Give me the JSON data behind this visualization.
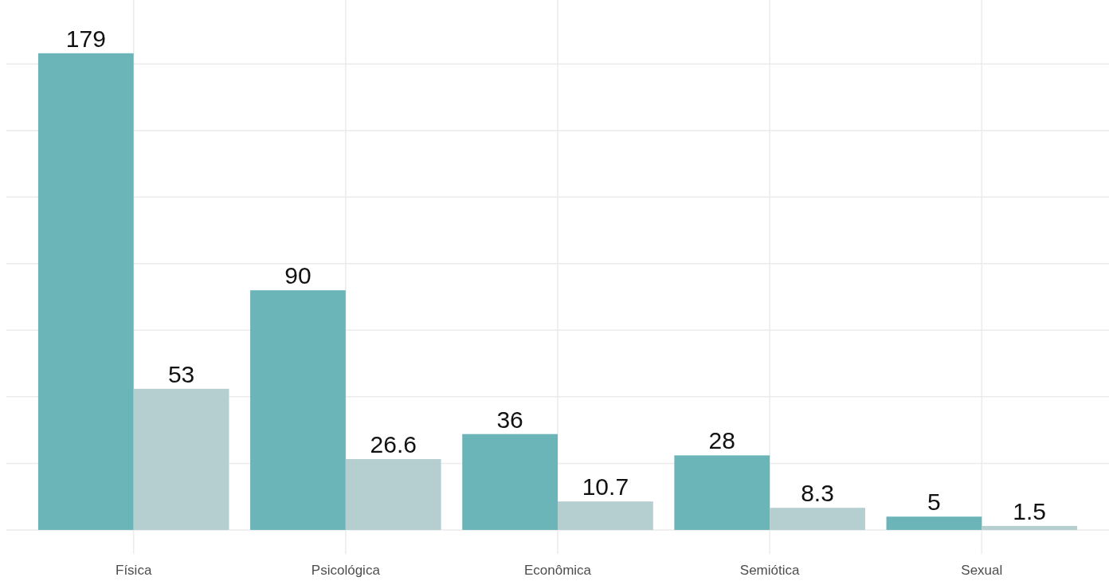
{
  "chart_data": {
    "type": "bar",
    "categories": [
      "Física",
      "Psicológica",
      "Econômica",
      "Semiótica",
      "Sexual"
    ],
    "series": [
      {
        "color": "#6bb5b8",
        "values": [
          179,
          90,
          36,
          28,
          5
        ]
      },
      {
        "color": "#b5cecf",
        "values": [
          53,
          26.6,
          10.7,
          8.3,
          1.5
        ]
      }
    ],
    "ylim": [
      -9,
      199
    ],
    "yticks": [
      {
        "value": 0,
        "label": null
      },
      {
        "value": 25,
        "label": null
      },
      {
        "value": 50,
        "label": null
      },
      {
        "value": 75,
        "label": null
      },
      {
        "value": 100,
        "label": null
      },
      {
        "value": 125,
        "label": null
      },
      {
        "value": 150,
        "label": null
      },
      {
        "value": 175,
        "label": null
      }
    ],
    "grid": true,
    "data_labels": true,
    "tick_labels": "x"
  }
}
